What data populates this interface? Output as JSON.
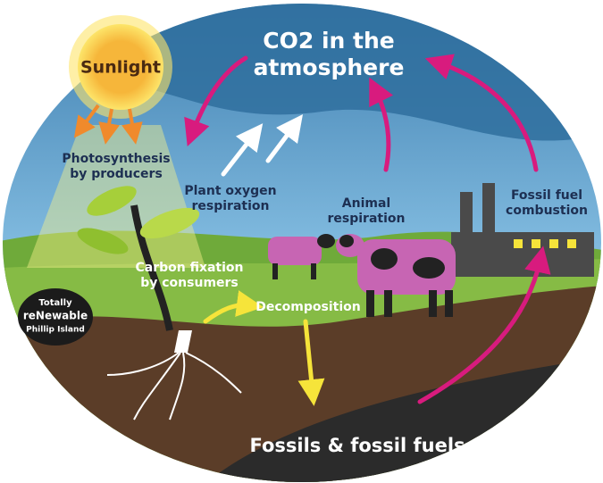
{
  "sun": "Sunlight",
  "atmosphere": {
    "lines": [
      "CO2 in the",
      "atmosphere"
    ]
  },
  "labels": [
    {
      "lines": [
        "Photosynthesis",
        "by producers"
      ]
    },
    {
      "lines": [
        "Plant oxygen",
        "respiration"
      ]
    },
    {
      "lines": [
        "Animal",
        "respiration"
      ]
    },
    {
      "lines": [
        "Fossil fuel",
        "combustion"
      ]
    },
    {
      "lines": [
        "Carbon fixation",
        "by consumers"
      ]
    },
    {
      "lines": [
        "Decomposition"
      ]
    }
  ],
  "fossils": "Fossils & fossil fuels",
  "logo": {
    "lines": [
      "Totally",
      "reNewable",
      "Phillip Island"
    ]
  }
}
